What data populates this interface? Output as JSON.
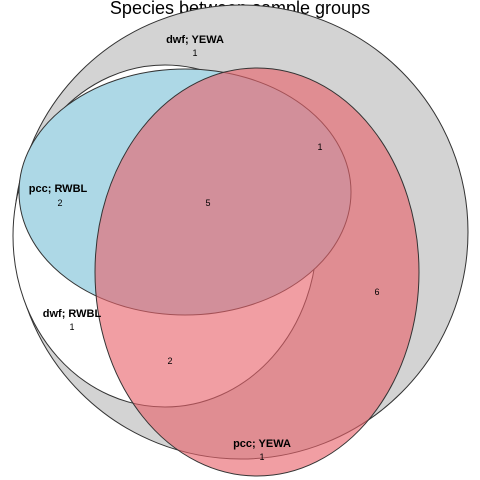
{
  "title": "Species between sample groups",
  "sets": [
    {
      "label": "dwf; YEWA",
      "color": "#d3d3d3"
    },
    {
      "label": "dwf; RWBL",
      "color": "#ffffff"
    },
    {
      "label": "pcc; RWBL",
      "color": "#add8e6"
    },
    {
      "label": "pcc; YEWA",
      "color": "#e8626a"
    }
  ],
  "counts": {
    "dwf_yewa_only": "1",
    "pcc_rwbl_only": "2",
    "dwf_rwbl_only": "1",
    "pcc_yewa_only": "1",
    "top_right_blue": "1",
    "center": "5",
    "lower_pink": "2",
    "right_red": "6"
  }
}
